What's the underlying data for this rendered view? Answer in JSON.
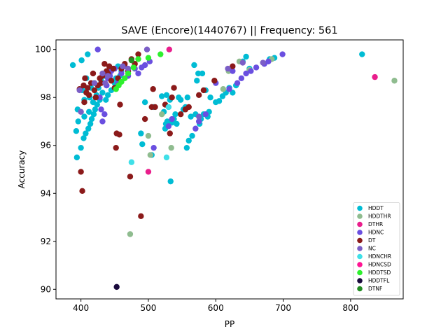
{
  "chart_data": {
    "type": "scatter",
    "title": "SAVE (Encore)(1440767) || Frequency: 561",
    "xlabel": "PP",
    "ylabel": "Accuracy",
    "xlim": [
      363,
      878
    ],
    "ylim": [
      89.6,
      100.4
    ],
    "xticks": [
      400,
      500,
      600,
      700,
      800
    ],
    "yticks": [
      90,
      92,
      94,
      96,
      98,
      100
    ],
    "legend_position": "lower-right",
    "grid": false,
    "series": [
      {
        "name": "HDDT",
        "color": "#00bcd4",
        "points": [
          [
            388,
            99.35
          ],
          [
            393,
            96.6
          ],
          [
            394,
            95.5
          ],
          [
            395,
            97.5
          ],
          [
            396,
            97.0
          ],
          [
            400,
            95.9
          ],
          [
            401,
            99.55
          ],
          [
            402,
            98.3
          ],
          [
            404,
            96.3
          ],
          [
            405,
            97.9
          ],
          [
            405,
            97.2
          ],
          [
            407,
            96.5
          ],
          [
            408,
            98.8
          ],
          [
            410,
            99.8
          ],
          [
            411,
            96.7
          ],
          [
            412,
            97.4
          ],
          [
            413,
            98.0
          ],
          [
            414,
            96.9
          ],
          [
            415,
            98.4
          ],
          [
            416,
            97.1
          ],
          [
            418,
            97.8
          ],
          [
            419,
            97.3
          ],
          [
            420,
            98.6
          ],
          [
            421,
            97.5
          ],
          [
            423,
            98.1
          ],
          [
            424,
            97.7
          ],
          [
            426,
            98.4
          ],
          [
            428,
            97.9
          ],
          [
            430,
            98.7
          ],
          [
            432,
            98.2
          ],
          [
            435,
            98.9
          ],
          [
            437,
            97.9
          ],
          [
            438,
            98.5
          ],
          [
            440,
            98.1
          ],
          [
            442,
            99.0
          ],
          [
            445,
            98.3
          ],
          [
            448,
            99.2
          ],
          [
            450,
            98.6
          ],
          [
            452,
            98.8
          ],
          [
            455,
            99.3
          ],
          [
            458,
            98.9
          ],
          [
            460,
            99.1
          ],
          [
            489,
            96.5
          ],
          [
            491,
            96.05
          ],
          [
            495,
            97.8
          ],
          [
            505,
            95.6
          ],
          [
            508,
            97.6
          ],
          [
            520,
            98.05
          ],
          [
            523,
            97.4
          ],
          [
            525,
            96.7
          ],
          [
            526,
            96.9
          ],
          [
            527,
            98.1
          ],
          [
            528,
            97.0
          ],
          [
            530,
            97.6
          ],
          [
            532,
            97.9
          ],
          [
            533,
            94.5
          ],
          [
            535,
            96.95
          ],
          [
            538,
            97.1
          ],
          [
            540,
            97.3
          ],
          [
            542,
            96.9
          ],
          [
            545,
            98.0
          ],
          [
            548,
            97.9
          ],
          [
            552,
            97.5
          ],
          [
            555,
            97.6
          ],
          [
            557,
            95.9
          ],
          [
            558,
            98.0
          ],
          [
            560,
            96.2
          ],
          [
            563,
            97.2
          ],
          [
            565,
            96.4
          ],
          [
            568,
            99.35
          ],
          [
            570,
            97.3
          ],
          [
            572,
            98.7
          ],
          [
            574,
            99.0
          ],
          [
            576,
            96.9
          ],
          [
            578,
            97.1
          ],
          [
            580,
            99.0
          ],
          [
            582,
            97.3
          ],
          [
            585,
            98.3
          ],
          [
            588,
            97.2
          ],
          [
            590,
            97.4
          ],
          [
            592,
            98.0
          ],
          [
            600,
            97.8
          ],
          [
            605,
            97.85
          ],
          [
            610,
            98.05
          ],
          [
            615,
            98.2
          ],
          [
            620,
            98.4
          ],
          [
            625,
            98.2
          ],
          [
            630,
            98.5
          ],
          [
            640,
            99.5
          ],
          [
            645,
            99.7
          ],
          [
            650,
            99.2
          ],
          [
            680,
            99.6
          ],
          [
            687,
            99.65
          ],
          [
            817,
            99.8
          ]
        ]
      },
      {
        "name": "HDDTHR",
        "color": "#8fbc8f",
        "points": [
          [
            473,
            92.3
          ],
          [
            500,
            96.4
          ],
          [
            503,
            95.6
          ],
          [
            520,
            97.3
          ],
          [
            534,
            95.9
          ],
          [
            611,
            98.35
          ],
          [
            619,
            99.1
          ],
          [
            635,
            99.5
          ],
          [
            650,
            99.15
          ],
          [
            683,
            99.6
          ],
          [
            865,
            98.7
          ]
        ]
      },
      {
        "name": "DTHR",
        "color": "#e91e8c",
        "points": [
          [
            500,
            94.9
          ],
          [
            531,
            100.0
          ],
          [
            836,
            98.85
          ]
        ]
      },
      {
        "name": "HDNC",
        "color": "#6a4fe0",
        "points": [
          [
            425,
            100.0
          ],
          [
            428,
            98.0
          ],
          [
            430,
            97.5
          ],
          [
            432,
            97.0
          ],
          [
            435,
            97.3
          ],
          [
            438,
            98.5
          ],
          [
            440,
            98.8
          ],
          [
            443,
            98.9
          ],
          [
            445,
            99.1
          ],
          [
            450,
            99.2
          ],
          [
            455,
            98.6
          ],
          [
            460,
            99.0
          ],
          [
            465,
            99.3
          ],
          [
            470,
            98.9
          ],
          [
            480,
            99.2
          ],
          [
            485,
            99.0
          ],
          [
            490,
            99.25
          ],
          [
            495,
            99.35
          ],
          [
            502,
            99.5
          ],
          [
            508,
            95.9
          ],
          [
            530,
            96.8
          ],
          [
            535,
            97.1
          ],
          [
            570,
            96.7
          ],
          [
            575,
            97.0
          ],
          [
            585,
            97.3
          ],
          [
            600,
            98.6
          ],
          [
            620,
            98.35
          ],
          [
            625,
            99.1
          ],
          [
            632,
            98.6
          ],
          [
            638,
            98.8
          ],
          [
            645,
            99.0
          ],
          [
            652,
            99.1
          ],
          [
            660,
            99.25
          ],
          [
            672,
            99.4
          ],
          [
            678,
            99.5
          ],
          [
            699,
            99.8
          ]
        ]
      },
      {
        "name": "DT",
        "color": "#8b1a1a",
        "points": [
          [
            398,
            98.35
          ],
          [
            400,
            94.9
          ],
          [
            402,
            94.1
          ],
          [
            404,
            98.5
          ],
          [
            405,
            97.8
          ],
          [
            406,
            98.8
          ],
          [
            408,
            98.2
          ],
          [
            410,
            98.4
          ],
          [
            412,
            98.1
          ],
          [
            415,
            98.6
          ],
          [
            418,
            99.0
          ],
          [
            420,
            98.3
          ],
          [
            422,
            98.0
          ],
          [
            425,
            98.5
          ],
          [
            428,
            98.8
          ],
          [
            430,
            98.6
          ],
          [
            432,
            98.9
          ],
          [
            435,
            99.4
          ],
          [
            438,
            99.1
          ],
          [
            440,
            99.0
          ],
          [
            442,
            99.3
          ],
          [
            445,
            98.7
          ],
          [
            448,
            99.2
          ],
          [
            450,
            98.4
          ],
          [
            452,
            95.9
          ],
          [
            453,
            96.5
          ],
          [
            455,
            98.8
          ],
          [
            457,
            96.45
          ],
          [
            458,
            97.7
          ],
          [
            460,
            99.2
          ],
          [
            465,
            99.4
          ],
          [
            470,
            99.1
          ],
          [
            473,
            94.7
          ],
          [
            475,
            99.6
          ],
          [
            480,
            99.4
          ],
          [
            485,
            99.8
          ],
          [
            489,
            93.05
          ],
          [
            495,
            97.1
          ],
          [
            505,
            97.6
          ],
          [
            507,
            98.35
          ],
          [
            510,
            97.6
          ],
          [
            525,
            97.7
          ],
          [
            532,
            96.5
          ],
          [
            535,
            98.0
          ],
          [
            538,
            98.4
          ],
          [
            548,
            97.3
          ],
          [
            555,
            97.5
          ],
          [
            560,
            97.6
          ],
          [
            575,
            98.1
          ],
          [
            582,
            98.3
          ],
          [
            598,
            98.7
          ],
          [
            625,
            99.3
          ]
        ]
      },
      {
        "name": "NC",
        "color": "#7b5ec6",
        "points": [
          [
            398,
            98.3
          ],
          [
            400,
            97.4
          ],
          [
            420,
            98.6
          ],
          [
            432,
            99.0
          ],
          [
            436,
            98.6
          ],
          [
            440,
            98.9
          ],
          [
            462,
            99.3
          ],
          [
            470,
            99.2
          ],
          [
            498,
            100.0
          ],
          [
            575,
            97.2
          ],
          [
            618,
            99.2
          ],
          [
            640,
            99.45
          ],
          [
            670,
            99.45
          ]
        ]
      },
      {
        "name": "HDNCHR",
        "color": "#40e0e8",
        "points": [
          [
            475,
            95.3
          ],
          [
            527,
            95.5
          ],
          [
            530,
            97.6
          ]
        ]
      },
      {
        "name": "HDNCSD",
        "color": "#ff1493",
        "points": []
      },
      {
        "name": "HDDTSD",
        "color": "#2ef02e",
        "points": [
          [
            452,
            98.35
          ],
          [
            456,
            98.5
          ],
          [
            460,
            98.65
          ],
          [
            465,
            98.8
          ],
          [
            470,
            99.0
          ],
          [
            478,
            99.25
          ],
          [
            485,
            99.6
          ],
          [
            500,
            99.65
          ],
          [
            518,
            99.8
          ]
        ]
      },
      {
        "name": "HDDTFL",
        "color": "#1a0a3d",
        "points": [
          [
            453,
            90.1
          ]
        ]
      },
      {
        "name": "DTNF",
        "color": "#228b22",
        "points": [
          [
            475,
            99.55
          ]
        ]
      }
    ]
  }
}
